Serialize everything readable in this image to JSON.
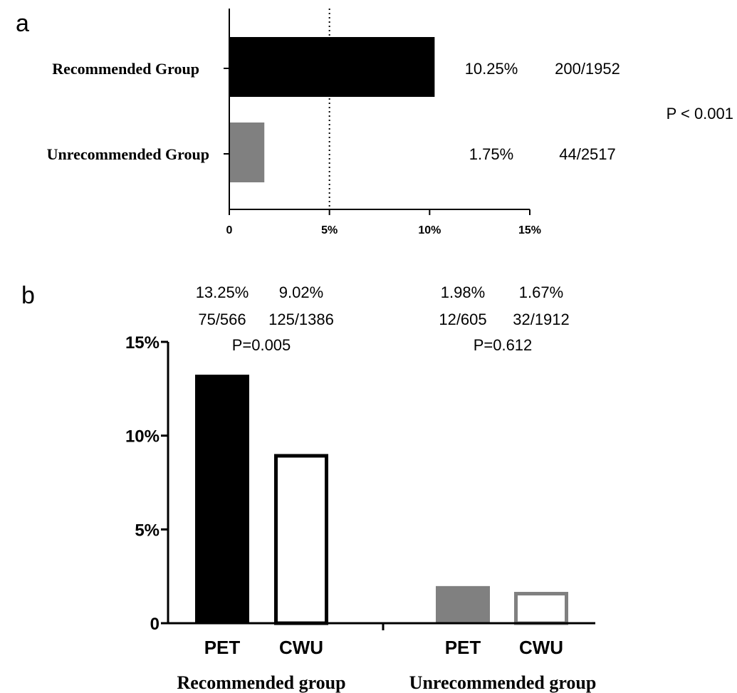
{
  "chart_data": [
    {
      "panel": "a",
      "type": "bar",
      "orientation": "horizontal",
      "categories": [
        "Recommended Group",
        "Unrecommended Group"
      ],
      "values": [
        10.25,
        1.75
      ],
      "value_labels": [
        "10.25%",
        "1.75%"
      ],
      "count_labels": [
        "200/1952",
        "44/2517"
      ],
      "p_value_label": "P < 0.001",
      "x_ticks": [
        {
          "value": 0,
          "label": "0"
        },
        {
          "value": 5,
          "label": "5%"
        },
        {
          "value": 10,
          "label": "10%"
        },
        {
          "value": 15,
          "label": "15%"
        }
      ],
      "xlim": [
        0,
        15
      ],
      "reference_line": 5,
      "colors": [
        "#000000",
        "#808080"
      ]
    },
    {
      "panel": "b",
      "type": "bar",
      "groups": [
        {
          "name": "Recommended group",
          "bars": [
            {
              "category": "PET",
              "value": 13.25,
              "pct_label": "13.25%",
              "count_label": "75/566",
              "fill": "#000000",
              "stroke": "#000000"
            },
            {
              "category": "CWU",
              "value": 9.02,
              "pct_label": "9.02%",
              "count_label": "125/1386",
              "fill": "#ffffff",
              "stroke": "#000000"
            }
          ],
          "p_value_label": "P=0.005"
        },
        {
          "name": "Unrecommended group",
          "bars": [
            {
              "category": "PET",
              "value": 1.98,
              "pct_label": "1.98%",
              "count_label": "12/605",
              "fill": "#808080",
              "stroke": "#808080"
            },
            {
              "category": "CWU",
              "value": 1.67,
              "pct_label": "1.67%",
              "count_label": "32/1912",
              "fill": "#ffffff",
              "stroke": "#808080"
            }
          ],
          "p_value_label": "P=0.612"
        }
      ],
      "y_ticks": [
        {
          "value": 0,
          "label": "0"
        },
        {
          "value": 5,
          "label": "5%"
        },
        {
          "value": 10,
          "label": "10%"
        },
        {
          "value": 15,
          "label": "15%"
        }
      ],
      "ylim": [
        0,
        15
      ]
    }
  ],
  "panels": {
    "a_label": "a",
    "b_label": "b"
  }
}
